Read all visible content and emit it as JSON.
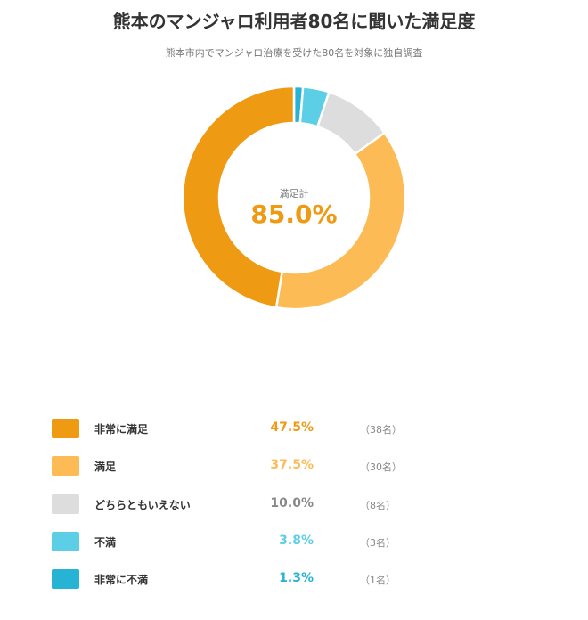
{
  "title": "熊本のマンジャロ利用者80名に聞いた満足度",
  "subtitle": "熊本市内でマンジャロ治療を受けた80名を対象に独自調査",
  "center": {
    "label": "満足計",
    "value": "85.0%"
  },
  "chart_data": {
    "type": "pie",
    "title": "熊本のマンジャロ利用者80名に聞いた満足度",
    "subtitle": "熊本市内でマンジャロ治療を受けた80名を対象に独自調査",
    "total_label": "満足計",
    "total_value": "85.0%",
    "categories": [
      "非常に満足",
      "満足",
      "どちらともいえない",
      "不満",
      "非常に不満"
    ],
    "values": [
      47.5,
      37.5,
      10.0,
      3.8,
      1.3
    ],
    "counts": [
      38,
      30,
      8,
      3,
      1
    ],
    "colors": [
      "#ef9a13",
      "#fdbb55",
      "#dddddd",
      "#5ccfe6",
      "#27b3d3"
    ],
    "legend": "bottom"
  },
  "legend": [
    {
      "label": "非常に満足",
      "pct": "47.5%",
      "count": "（38名）",
      "color": "#ef9a13",
      "pct_color": "#ef9a13"
    },
    {
      "label": "満足",
      "pct": "37.5%",
      "count": "（30名）",
      "color": "#fdbb55",
      "pct_color": "#fdbb55"
    },
    {
      "label": "どちらともいえない",
      "pct": "10.0%",
      "count": "（8名）",
      "color": "#dddddd",
      "pct_color": "#888888"
    },
    {
      "label": "不満",
      "pct": "3.8%",
      "count": "（3名）",
      "color": "#5ccfe6",
      "pct_color": "#5ccfe6"
    },
    {
      "label": "非常に不満",
      "pct": "1.3%",
      "count": "（1名）",
      "color": "#27b3d3",
      "pct_color": "#27b3d3"
    }
  ]
}
